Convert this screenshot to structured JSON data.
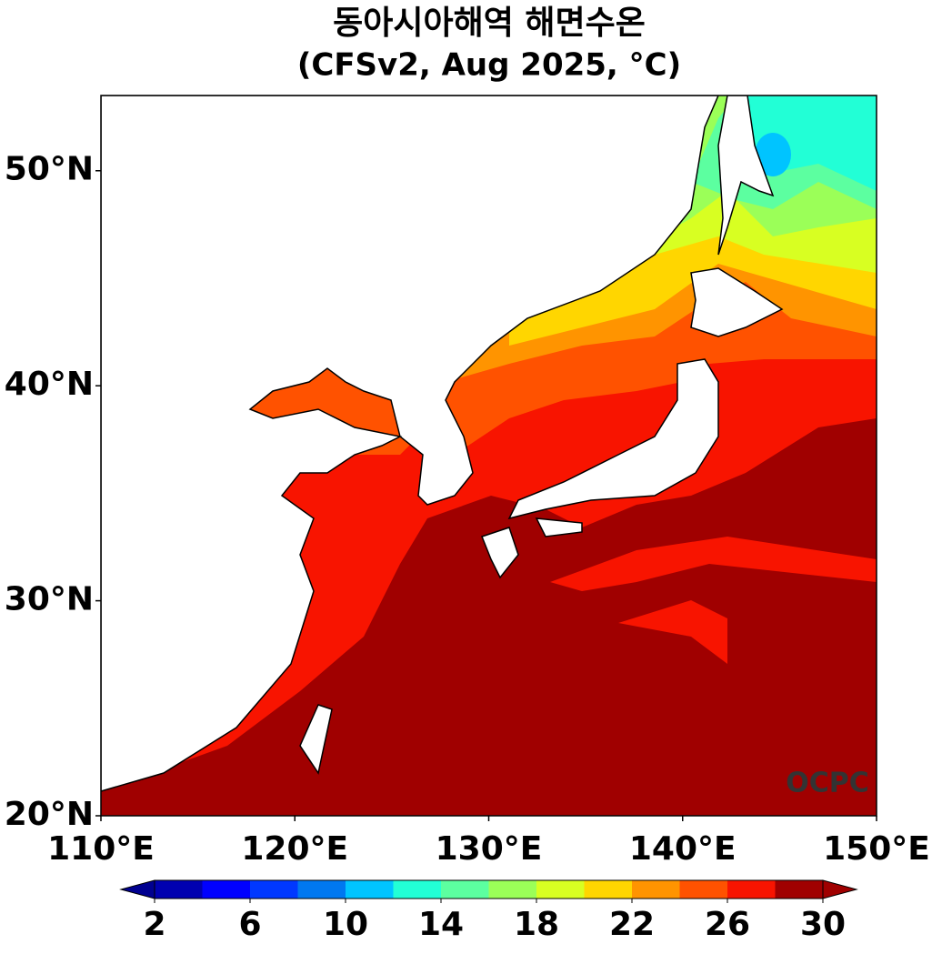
{
  "title": "동아시아해역 해면수온",
  "subtitle": "(CFSv2, Aug 2025, °C)",
  "watermark": "OCPC",
  "map": {
    "xlim": [
      110,
      150
    ],
    "ylim": [
      20,
      53.5
    ],
    "xticks": [
      {
        "value": 110,
        "label": "110°E"
      },
      {
        "value": 120,
        "label": "120°E"
      },
      {
        "value": 130,
        "label": "130°E"
      },
      {
        "value": 140,
        "label": "140°E"
      },
      {
        "value": 150,
        "label": "150°E"
      }
    ],
    "yticks": [
      {
        "value": 20,
        "label": "20°N"
      },
      {
        "value": 30,
        "label": "30°N"
      },
      {
        "value": 40,
        "label": "40°N"
      },
      {
        "value": 50,
        "label": "50°N"
      }
    ]
  },
  "colorbar": {
    "levels": [
      2,
      4,
      6,
      8,
      10,
      12,
      14,
      16,
      18,
      20,
      22,
      24,
      26,
      28,
      30
    ],
    "ticks": [
      2,
      6,
      10,
      14,
      18,
      22,
      26,
      30
    ],
    "colors": [
      "#0000b0",
      "#0000ff",
      "#0038ff",
      "#0078f0",
      "#00c4ff",
      "#22ffd6",
      "#5cffa0",
      "#9bff58",
      "#d8ff22",
      "#ffd600",
      "#ff9400",
      "#ff5200",
      "#f81400",
      "#a00000"
    ],
    "under_color": "#000090",
    "over_color": "#a00000"
  }
}
